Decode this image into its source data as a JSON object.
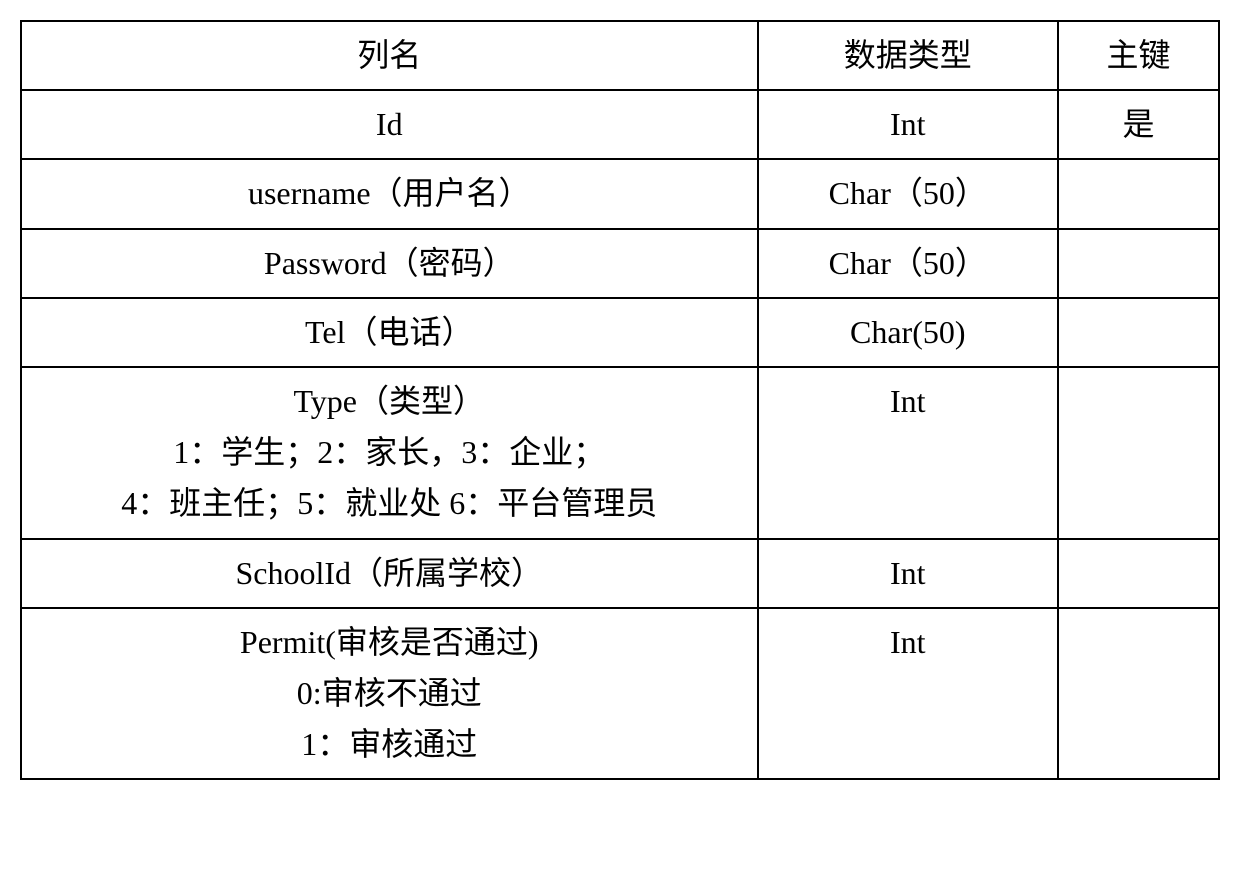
{
  "table": {
    "headers": {
      "col1": "列名",
      "col2": "数据类型",
      "col3": "主键"
    },
    "rows": [
      {
        "name": "Id",
        "type": "Int",
        "key": "是"
      },
      {
        "name": "username（用户名）",
        "type": "Char（50）",
        "key": ""
      },
      {
        "name": "Password（密码）",
        "type": "Char（50）",
        "key": ""
      },
      {
        "name": "Tel（电话）",
        "type": "Char(50)",
        "key": ""
      },
      {
        "name": "Type（类型）\n1：学生；2：家长，3：企业；\n4：班主任；5：就业处 6：平台管理员",
        "type": "Int",
        "key": ""
      },
      {
        "name": "SchoolId（所属学校）",
        "type": "Int",
        "key": ""
      },
      {
        "name": "Permit(审核是否通过)\n0:审核不通过\n1：审核通过",
        "type": "Int",
        "key": ""
      }
    ],
    "border_color": "#000000",
    "background_color": "#ffffff",
    "text_color": "#000000",
    "font_size": 32,
    "column_widths": {
      "col1": 720,
      "col2": 280,
      "col3": 140
    }
  }
}
